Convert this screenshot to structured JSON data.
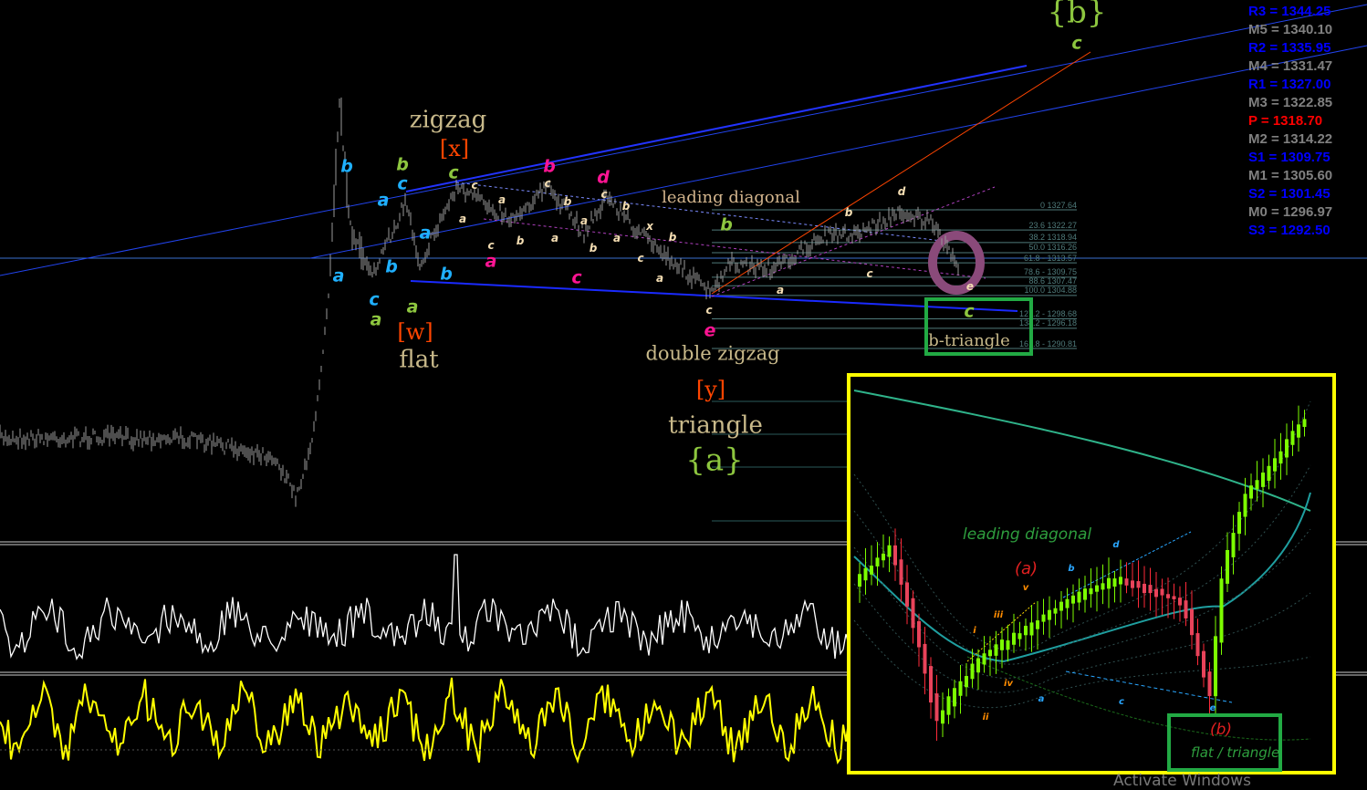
{
  "colors": {
    "background": "#000000",
    "pivot_r": "#0000ff",
    "pivot_m": "#808080",
    "pivot_p": "#ff0000",
    "fib": "#4f7a7a",
    "inset_border": "#ffff00",
    "box_green": "#22aa44",
    "osc1": "#ffffff",
    "osc2": "#ffff00"
  },
  "chart_data": {
    "type": "line",
    "title": "",
    "pivot_levels": [
      {
        "name": "R3",
        "label": "R3 = 1344.25",
        "value": 1344.25,
        "kind": "r"
      },
      {
        "name": "M5",
        "label": "M5 = 1340.10",
        "value": 1340.1,
        "kind": "m"
      },
      {
        "name": "R2",
        "label": "R2 = 1335.95",
        "value": 1335.95,
        "kind": "r"
      },
      {
        "name": "M4",
        "label": "M4 = 1331.47",
        "value": 1331.47,
        "kind": "m"
      },
      {
        "name": "R1",
        "label": "R1 = 1327.00",
        "value": 1327.0,
        "kind": "r"
      },
      {
        "name": "M3",
        "label": "M3 = 1322.85",
        "value": 1322.85,
        "kind": "m"
      },
      {
        "name": "P",
        "label": "P  = 1318.70",
        "value": 1318.7,
        "kind": "p"
      },
      {
        "name": "M2",
        "label": "M2 = 1314.22",
        "value": 1314.22,
        "kind": "m"
      },
      {
        "name": "S1",
        "label": "S1 = 1309.75",
        "value": 1309.75,
        "kind": "r"
      },
      {
        "name": "M1",
        "label": "M1 = 1305.60",
        "value": 1305.6,
        "kind": "m"
      },
      {
        "name": "S2",
        "label": "S2 = 1301.45",
        "value": 1301.45,
        "kind": "r"
      },
      {
        "name": "M0",
        "label": "M0 = 1296.97",
        "value": 1296.97,
        "kind": "m"
      },
      {
        "name": "S3",
        "label": "S3 = 1292.50",
        "value": 1292.5,
        "kind": "r"
      }
    ],
    "fib_levels": [
      {
        "ratio": 0,
        "price": 1327.64,
        "label": "0 1327.64"
      },
      {
        "ratio": 23.6,
        "price": 1322.27,
        "label": "23.6 1322.27"
      },
      {
        "ratio": 38.2,
        "price": 1318.94,
        "label": "38.2 1318.94"
      },
      {
        "ratio": 50.0,
        "price": 1316.26,
        "label": "50.0 1316.26"
      },
      {
        "ratio": 61.8,
        "price": 1313.57,
        "label": "61.8 - 1313.57"
      },
      {
        "ratio": 78.6,
        "price": 1309.75,
        "label": "78.6 - 1309.75"
      },
      {
        "ratio": 88.6,
        "price": 1307.47,
        "label": "88.6 1307.47"
      },
      {
        "ratio": 100.0,
        "price": 1304.88,
        "label": "100.0 1304.88"
      },
      {
        "ratio": 127.2,
        "price": 1298.68,
        "label": "127.2 - 1298.68"
      },
      {
        "ratio": 138.2,
        "price": 1296.18,
        "label": "138.2 - 1296.18"
      },
      {
        "ratio": 161.8,
        "price": 1290.81,
        "label": "161.8 - 1290.81"
      }
    ]
  },
  "annotations": {
    "zigzag": "zigzag",
    "x": "[x]",
    "flat": "flat",
    "w": "[w]",
    "double_zigzag": "double zigzag",
    "y": "[y]",
    "triangle": "triangle",
    "a_brace": "{a}",
    "b_brace": "{b}",
    "c_top": "c",
    "leading_diagonal": "leading diagonal",
    "b_triangle": "b-triangle"
  },
  "wave_labels": [
    "b",
    "a",
    "a",
    "b",
    "b",
    "a",
    "c",
    "b",
    "c",
    "c",
    "a",
    "a",
    "b",
    "c",
    "b",
    "d",
    "a",
    "c",
    "e",
    "c",
    "c",
    "a",
    "b",
    "b",
    "a",
    "a",
    "c",
    "b",
    "a",
    "b",
    "a",
    "x",
    "b",
    "c",
    "a",
    "c",
    "a",
    "b",
    "d",
    "c",
    "e",
    "c"
  ],
  "inset": {
    "leading_diagonal": "leading diagonal",
    "a_paren": "(a)",
    "b_paren": "(b)",
    "flat_triangle": "flat / triangle",
    "sub_labels": [
      "i",
      "ii",
      "iii",
      "iv",
      "v",
      "a",
      "b",
      "c",
      "d",
      "e"
    ]
  },
  "watermark": "Activate Windows"
}
